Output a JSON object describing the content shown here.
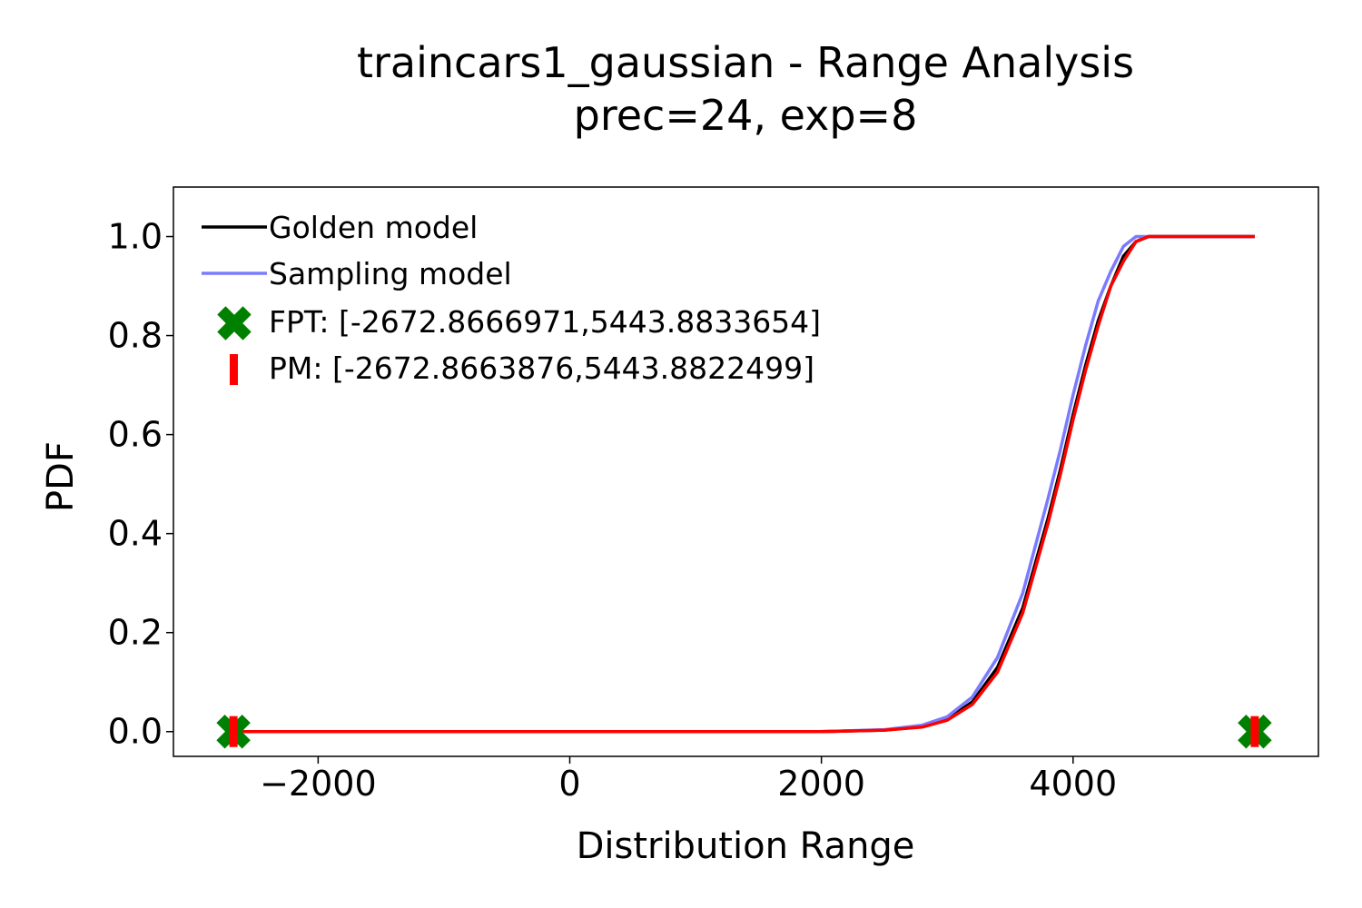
{
  "chart_data": {
    "type": "line",
    "title": "traincars1_gaussian - Range Analysis",
    "subtitle": "prec=24, exp=8",
    "xlabel": "Distribution Range",
    "ylabel": "PDF",
    "xlim": [
      -3150,
      5950
    ],
    "ylim": [
      -0.05,
      1.1
    ],
    "xticks": [
      -2000,
      0,
      2000,
      4000
    ],
    "xtick_labels": [
      "−2000",
      "0",
      "2000",
      "4000"
    ],
    "yticks": [
      0.0,
      0.2,
      0.4,
      0.6,
      0.8,
      1.0
    ],
    "ytick_labels": [
      "0.0",
      "0.2",
      "0.4",
      "0.6",
      "0.8",
      "1.0"
    ],
    "grid": false,
    "legend_position": "top-left",
    "series": [
      {
        "name": "Golden model",
        "color": "#000000",
        "x": [
          -2672.87,
          1000,
          2000,
          2500,
          2800,
          3000,
          3200,
          3400,
          3600,
          3800,
          3900,
          4000,
          4100,
          4200,
          4300,
          4400,
          4500,
          4600,
          4700,
          5443.88
        ],
        "y": [
          0.0,
          0.0,
          0.0,
          0.003,
          0.01,
          0.025,
          0.06,
          0.13,
          0.25,
          0.43,
          0.53,
          0.64,
          0.74,
          0.83,
          0.9,
          0.96,
          0.99,
          1.0,
          1.0,
          1.0
        ]
      },
      {
        "name": "Sampling model",
        "color": "#7b7bff",
        "x": [
          -2672.87,
          1000,
          2000,
          2500,
          2800,
          3000,
          3200,
          3400,
          3600,
          3800,
          3900,
          4000,
          4100,
          4200,
          4300,
          4400,
          4500,
          4600,
          4700,
          5443.88
        ],
        "y": [
          0.0,
          0.0,
          0.0,
          0.004,
          0.013,
          0.03,
          0.07,
          0.15,
          0.28,
          0.47,
          0.57,
          0.68,
          0.78,
          0.87,
          0.93,
          0.98,
          1.0,
          1.0,
          1.0,
          1.0
        ]
      },
      {
        "name": "FPT: [-2672.8666971,5443.8833654]",
        "color": "#008000",
        "marker": "X",
        "x": [
          -2672.8666971,
          5443.8833654
        ],
        "y": [
          0.0,
          0.0
        ]
      },
      {
        "name": "PM: [-2672.8663876,5443.8822499]",
        "color": "#ff0000",
        "marker": "|",
        "x": [
          -2672.8663876,
          5443.8822499
        ],
        "y": [
          0.0,
          0.0
        ],
        "curve_x": [
          -2672.87,
          1000,
          2000,
          2500,
          2800,
          3000,
          3200,
          3400,
          3600,
          3800,
          3900,
          4000,
          4100,
          4200,
          4300,
          4400,
          4500,
          4600,
          4700,
          5443.88
        ],
        "curve_y": [
          0.0,
          0.0,
          0.0,
          0.003,
          0.009,
          0.023,
          0.055,
          0.12,
          0.24,
          0.42,
          0.52,
          0.63,
          0.73,
          0.82,
          0.9,
          0.95,
          0.99,
          1.0,
          1.0,
          1.0
        ]
      }
    ]
  }
}
